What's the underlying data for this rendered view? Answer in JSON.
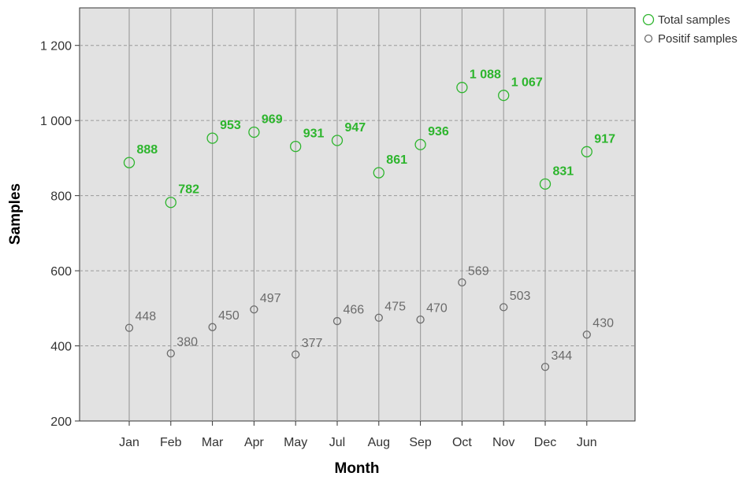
{
  "chart_data": {
    "type": "scatter",
    "xlabel": "Month",
    "ylabel": "Samples",
    "categories": [
      "Jan",
      "Feb",
      "Mar",
      "Apr",
      "May",
      "Jul",
      "Aug",
      "Sep",
      "Oct",
      "Nov",
      "Dec",
      "Jun"
    ],
    "ylim": [
      200,
      1300
    ],
    "yticks": [
      200,
      400,
      600,
      800,
      1000,
      1200
    ],
    "ytick_labels": [
      "200",
      "400",
      "600",
      "800",
      "1 000",
      "1 200"
    ],
    "grid": {
      "horizontal": "dashed",
      "vertical": "solid"
    },
    "legend_position": "top-right",
    "series": [
      {
        "name": "Total samples",
        "color": "#2db52d",
        "values": [
          888,
          782,
          953,
          969,
          931,
          947,
          861,
          936,
          1088,
          1067,
          831,
          917
        ],
        "labels": [
          "888",
          "782",
          "953",
          "969",
          "931",
          "947",
          "861",
          "936",
          "1 088",
          "1 067",
          "831",
          "917"
        ]
      },
      {
        "name": "Positif samples",
        "color": "#6b6b6b",
        "values": [
          448,
          380,
          450,
          497,
          377,
          466,
          475,
          470,
          569,
          503,
          344,
          430
        ],
        "labels": [
          "448",
          "380",
          "450",
          "497",
          "377",
          "466",
          "475",
          "470",
          "569",
          "503",
          "344",
          "430"
        ]
      }
    ]
  }
}
